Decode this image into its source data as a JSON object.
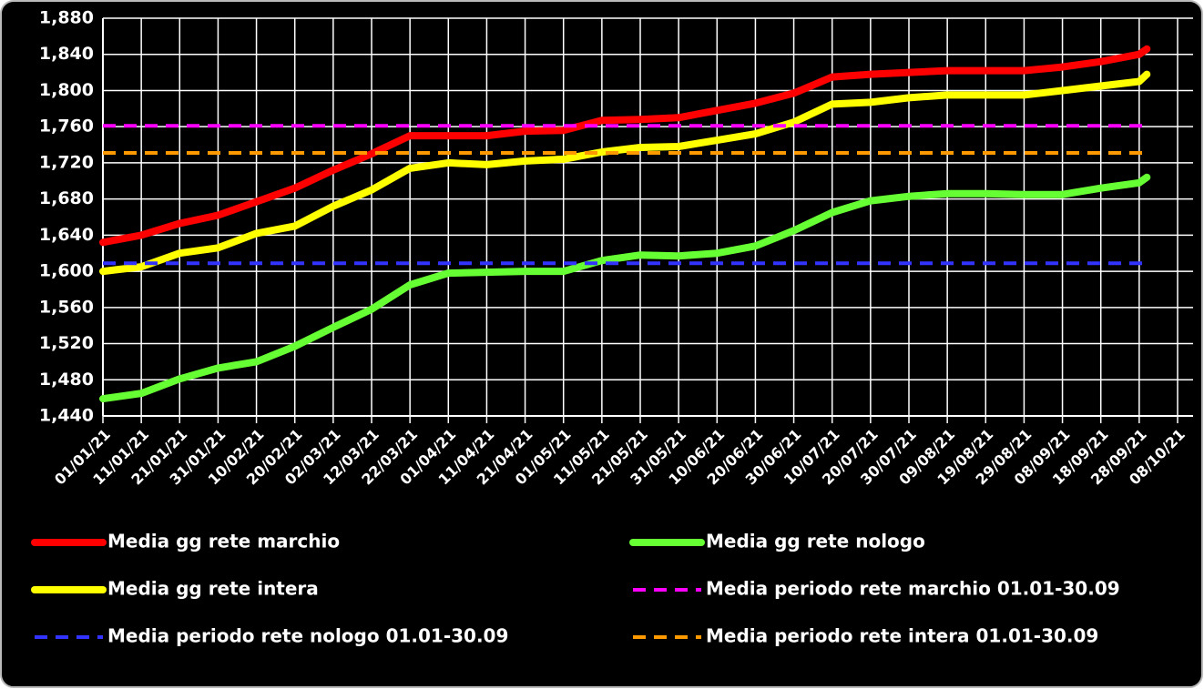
{
  "chart_data": {
    "type": "line",
    "x": [
      "01/01/21",
      "11/01/21",
      "21/01/21",
      "31/01/21",
      "10/02/21",
      "20/02/21",
      "02/03/21",
      "12/03/21",
      "22/03/21",
      "01/04/21",
      "11/04/21",
      "21/04/21",
      "01/05/21",
      "11/05/21",
      "21/05/21",
      "31/05/21",
      "10/06/21",
      "20/06/21",
      "30/06/21",
      "10/07/21",
      "20/07/21",
      "30/07/21",
      "09/08/21",
      "19/08/21",
      "29/08/21",
      "08/09/21",
      "18/09/21",
      "28/09/21",
      "30/09/21"
    ],
    "series": [
      {
        "name": "Media gg rete marchio",
        "color": "#ff0000",
        "dash": false,
        "values": [
          1632,
          1640,
          1653,
          1662,
          1677,
          1692,
          1712,
          1730,
          1750,
          1750,
          1750,
          1755,
          1756,
          1767,
          1768,
          1770,
          1778,
          1786,
          1797,
          1815,
          1818,
          1820,
          1822,
          1822,
          1822,
          1826,
          1832,
          1840,
          1846
        ]
      },
      {
        "name": "Media gg rete nologo",
        "color": "#66ff33",
        "dash": false,
        "values": [
          1459,
          1465,
          1481,
          1493,
          1500,
          1517,
          1538,
          1558,
          1585,
          1598,
          1599,
          1600,
          1600,
          1612,
          1618,
          1617,
          1620,
          1628,
          1645,
          1665,
          1678,
          1683,
          1686,
          1686,
          1685,
          1685,
          1692,
          1698,
          1704
        ]
      },
      {
        "name": "Media gg rete intera",
        "color": "#ffff00",
        "dash": false,
        "values": [
          1600,
          1605,
          1620,
          1626,
          1642,
          1650,
          1672,
          1690,
          1714,
          1720,
          1718,
          1722,
          1724,
          1732,
          1737,
          1738,
          1745,
          1752,
          1765,
          1785,
          1787,
          1792,
          1795,
          1795,
          1795,
          1800,
          1805,
          1810,
          1818
        ]
      },
      {
        "name": "Media periodo rete marchio 01.01-30.09",
        "color": "#ff00ff",
        "dash": true,
        "values": [
          1761,
          1761,
          1761,
          1761,
          1761,
          1761,
          1761,
          1761,
          1761,
          1761,
          1761,
          1761,
          1761,
          1761,
          1761,
          1761,
          1761,
          1761,
          1761,
          1761,
          1761,
          1761,
          1761,
          1761,
          1761,
          1761,
          1761,
          1761,
          1761
        ]
      },
      {
        "name": "Media periodo rete nologo 01.01-30.09",
        "color": "#3333ff",
        "dash": true,
        "values": [
          1609,
          1609,
          1609,
          1609,
          1609,
          1609,
          1609,
          1609,
          1609,
          1609,
          1609,
          1609,
          1609,
          1609,
          1609,
          1609,
          1609,
          1609,
          1609,
          1609,
          1609,
          1609,
          1609,
          1609,
          1609,
          1609,
          1609,
          1609,
          1609
        ]
      },
      {
        "name": "Media periodo rete intera 01.01-30.09",
        "color": "#ff9900",
        "dash": true,
        "values": [
          1731,
          1731,
          1731,
          1731,
          1731,
          1731,
          1731,
          1731,
          1731,
          1731,
          1731,
          1731,
          1731,
          1731,
          1731,
          1731,
          1731,
          1731,
          1731,
          1731,
          1731,
          1731,
          1731,
          1731,
          1731,
          1731,
          1731,
          1731,
          1731
        ]
      }
    ],
    "xlim": [
      "01/01/21",
      "08/10/21"
    ],
    "xticks": [
      "01/01/21",
      "11/01/21",
      "21/01/21",
      "31/01/21",
      "10/02/21",
      "20/02/21",
      "02/03/21",
      "12/03/21",
      "22/03/21",
      "01/04/21",
      "11/04/21",
      "21/04/21",
      "01/05/21",
      "11/05/21",
      "21/05/21",
      "31/05/21",
      "10/06/21",
      "20/06/21",
      "30/06/21",
      "10/07/21",
      "20/07/21",
      "30/07/21",
      "09/08/21",
      "19/08/21",
      "29/08/21",
      "08/09/21",
      "18/09/21",
      "28/09/21",
      "08/10/21"
    ],
    "ylim": [
      1440,
      1880
    ],
    "yticks": [
      {
        "value": 1440,
        "label": "1,440"
      },
      {
        "value": 1480,
        "label": "1,480"
      },
      {
        "value": 1520,
        "label": "1,520"
      },
      {
        "value": 1560,
        "label": "1,560"
      },
      {
        "value": 1600,
        "label": "1,600"
      },
      {
        "value": 1640,
        "label": "1,640"
      },
      {
        "value": 1680,
        "label": "1,680"
      },
      {
        "value": 1720,
        "label": "1,720"
      },
      {
        "value": 1760,
        "label": "1,760"
      },
      {
        "value": 1800,
        "label": "1,800"
      },
      {
        "value": 1840,
        "label": "1,840"
      },
      {
        "value": 1880,
        "label": "1,880"
      }
    ],
    "grid": true,
    "background": "#000000"
  }
}
